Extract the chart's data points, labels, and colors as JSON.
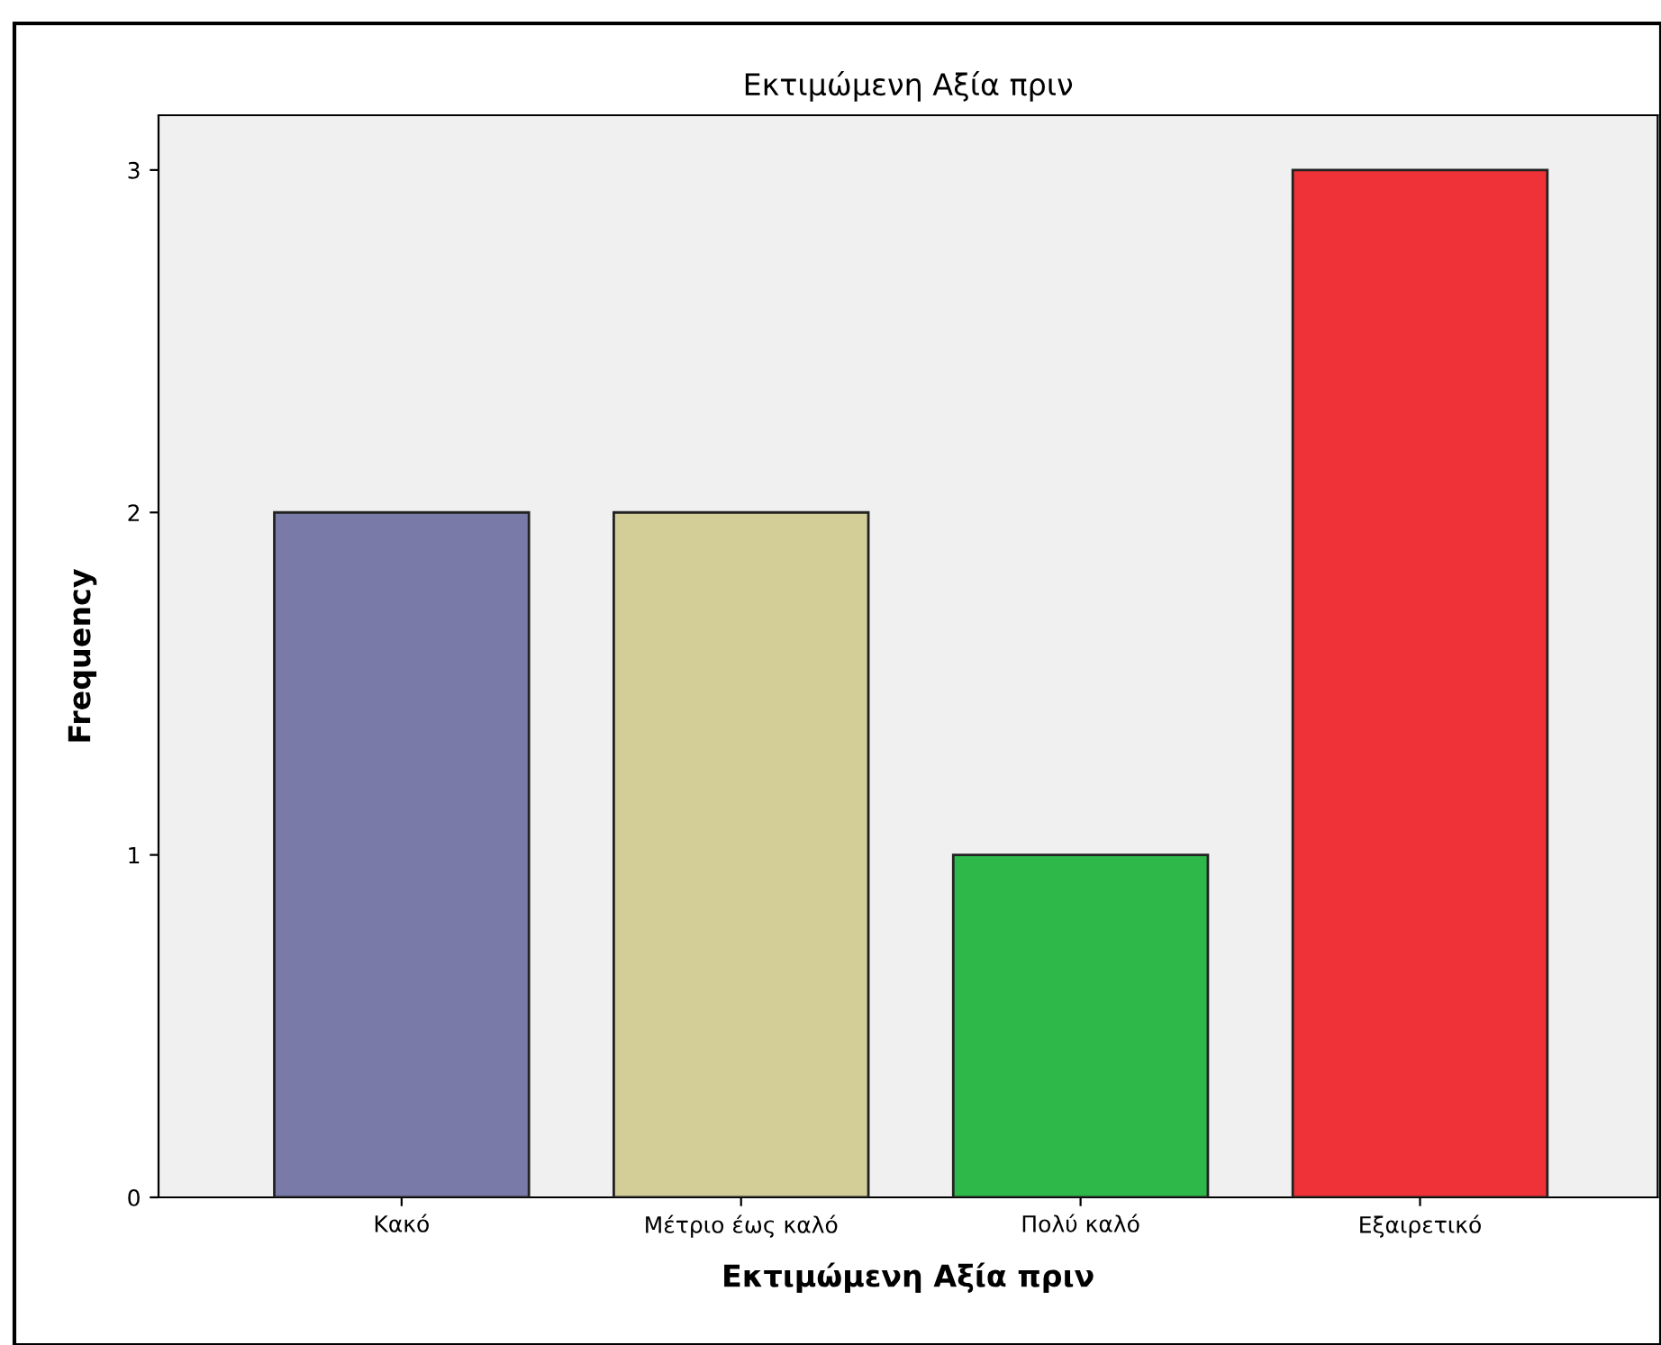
{
  "chart_data": {
    "type": "bar",
    "title": "Εκτιμώμενη Αξία πριν",
    "xlabel": "Εκτιμώμενη Αξία πριν",
    "ylabel": "Frequency",
    "categories": [
      "Κακό",
      "Μέτριο έως καλό",
      "Πολύ καλό",
      "Εξαιρετικό"
    ],
    "values": [
      2,
      2,
      1,
      3
    ],
    "colors": [
      "#7a7aa8",
      "#d3ce98",
      "#2fb84a",
      "#ef3238"
    ],
    "ylim": [
      0,
      3.16
    ],
    "yticks": [
      0,
      1,
      2,
      3
    ],
    "grid": false,
    "legend": false
  }
}
